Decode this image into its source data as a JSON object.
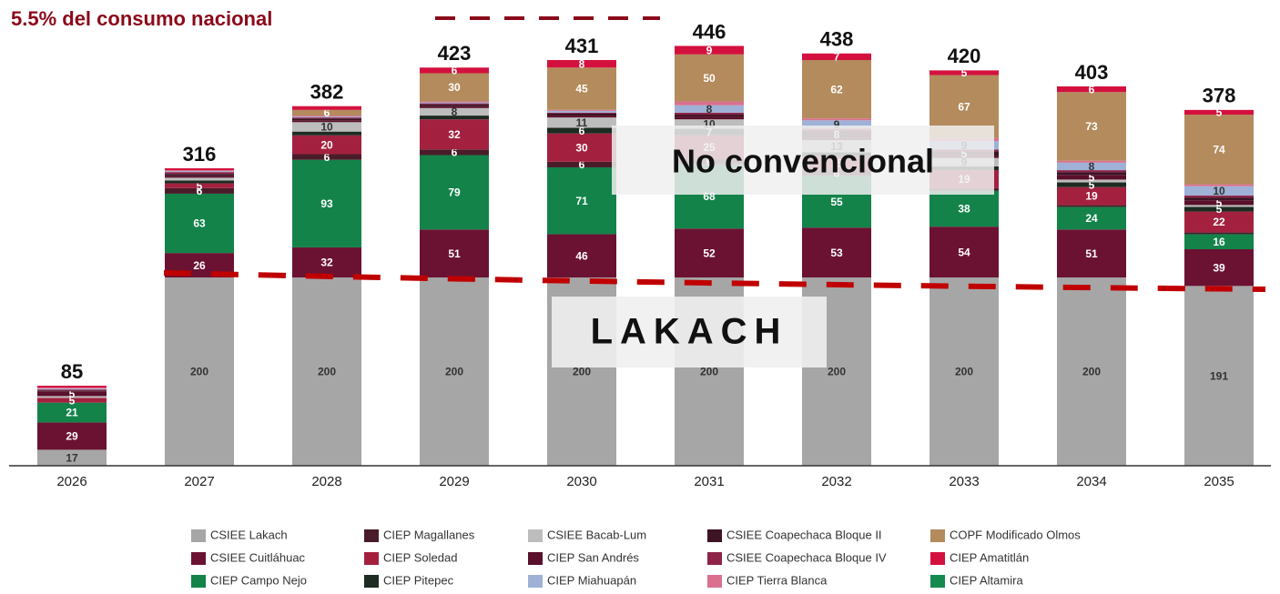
{
  "chart_data": {
    "type": "bar",
    "stacked": true,
    "categories": [
      "2026",
      "2027",
      "2028",
      "2029",
      "2030",
      "2031",
      "2032",
      "2033",
      "2034",
      "2035"
    ],
    "totals": [
      85,
      316,
      382,
      423,
      431,
      446,
      438,
      420,
      403,
      378
    ],
    "ylim": [
      0,
      460
    ],
    "annotations": [
      "5.5% del consumo nacional",
      "No convencional",
      "LAKACH"
    ],
    "series": [
      {
        "name": "CSIEE Lakach",
        "color": "#a6a6a6",
        "values": [
          17,
          200,
          200,
          200,
          200,
          200,
          200,
          200,
          200,
          191
        ]
      },
      {
        "name": "CIEP Magallanes",
        "color": "#4a1c2a",
        "values": [
          0,
          6,
          6,
          6,
          6,
          6,
          6,
          3,
          2,
          2
        ]
      },
      {
        "name": "CSIEE Bacab-Lum",
        "color": "#bdbdbd",
        "values": [
          2,
          3,
          10,
          8,
          11,
          10,
          13,
          9,
          3,
          2
        ]
      },
      {
        "name": "CSIEE Coapechaca Bloque II",
        "color": "#3d1426",
        "values": [
          1,
          2,
          2,
          2,
          2,
          2,
          8,
          5,
          3,
          3
        ]
      },
      {
        "name": "COPF Modificado Olmos",
        "color": "#b38b5d",
        "values": [
          0,
          0,
          6,
          30,
          45,
          50,
          62,
          67,
          73,
          74
        ]
      },
      {
        "name": "CSIEE Cuitláhuac",
        "color": "#6b1232",
        "values": [
          29,
          26,
          32,
          51,
          46,
          52,
          53,
          54,
          51,
          39
        ]
      },
      {
        "name": "CIEP Soledad",
        "color": "#a3213f",
        "values": [
          5,
          5,
          20,
          32,
          30,
          25,
          15,
          19,
          19,
          22
        ]
      },
      {
        "name": "CIEP San Andrés",
        "color": "#5a0f2a",
        "values": [
          5,
          2,
          2,
          2,
          2,
          3,
          2,
          2,
          5,
          5
        ]
      },
      {
        "name": "CSIEE Coapechaca Bloque IV",
        "color": "#8e2348",
        "values": [
          1,
          2,
          1,
          1,
          1,
          2,
          2,
          2,
          2,
          2
        ]
      },
      {
        "name": "CIEP Amatitlán",
        "color": "#d4113e",
        "values": [
          2,
          2,
          4,
          6,
          8,
          9,
          7,
          5,
          6,
          5
        ]
      },
      {
        "name": "CIEP Campo Nejo",
        "color": "#13834a",
        "values": [
          21,
          63,
          93,
          79,
          71,
          68,
          55,
          38,
          24,
          16
        ]
      },
      {
        "name": "CIEP Pitepec",
        "color": "#1e2b22",
        "values": [
          0,
          3,
          4,
          4,
          6,
          7,
          4,
          4,
          5,
          5
        ]
      },
      {
        "name": "CIEP Miahuapán",
        "color": "#9fb1d6",
        "values": [
          1,
          1,
          1,
          1,
          2,
          8,
          9,
          9,
          8,
          10
        ]
      },
      {
        "name": "CIEP Tierra Blanca",
        "color": "#d9708f",
        "values": [
          1,
          1,
          1,
          1,
          1,
          4,
          2,
          3,
          2,
          2
        ]
      },
      {
        "name": "CIEP Altamira",
        "color": "#148a50",
        "values": [
          0,
          0,
          0,
          0,
          0,
          0,
          0,
          0,
          0,
          0
        ]
      }
    ]
  }
}
